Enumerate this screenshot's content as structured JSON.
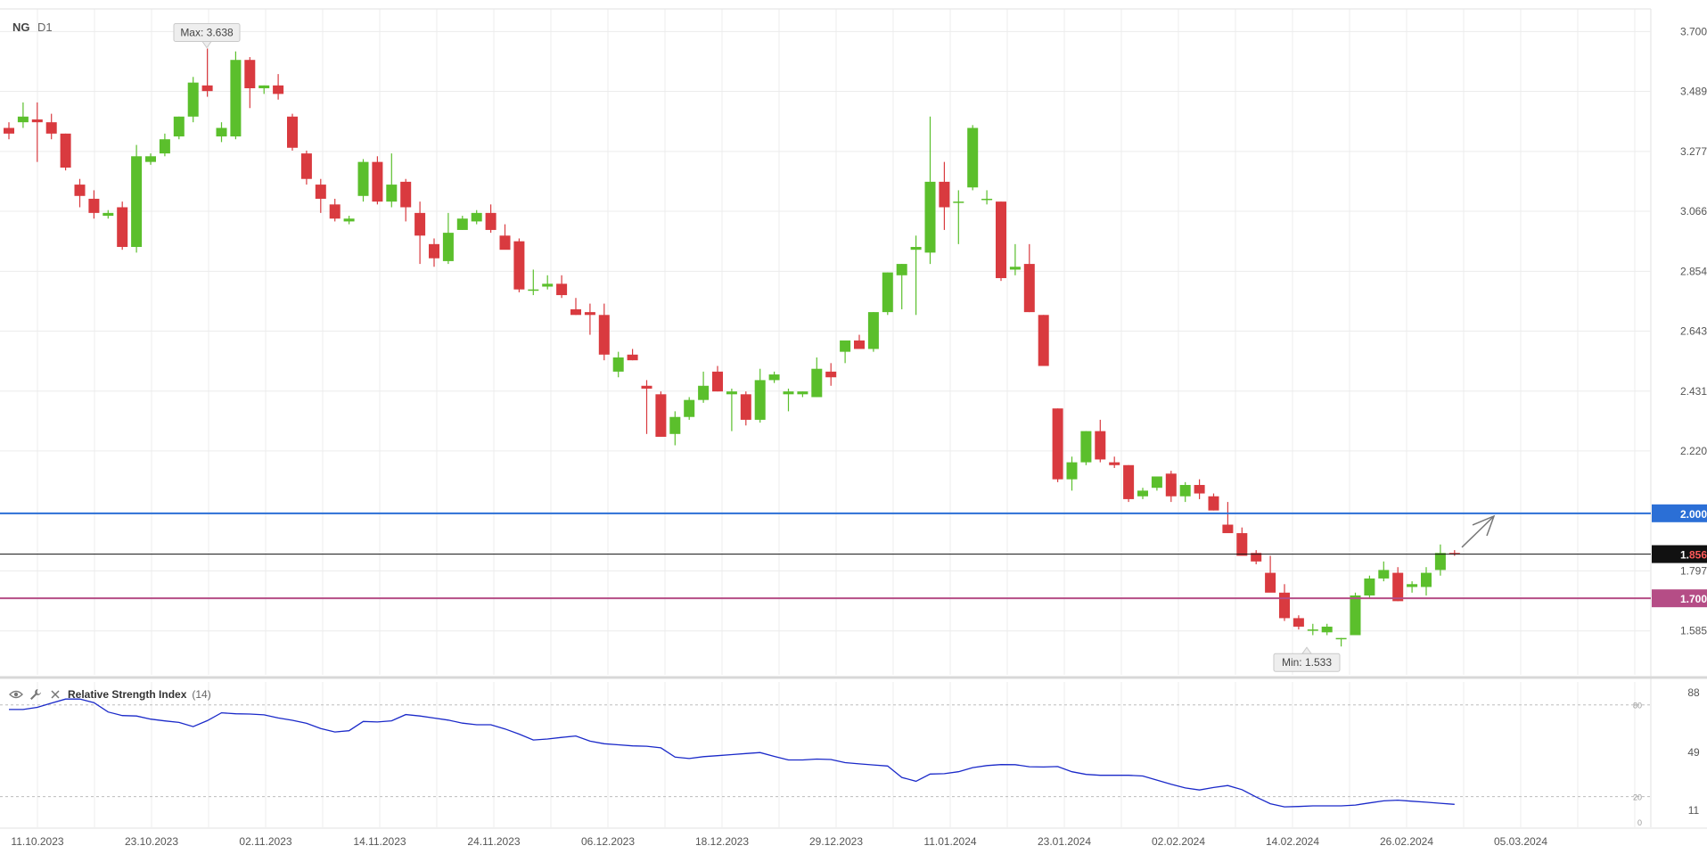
{
  "symbol": "NG",
  "timeframe": "D1",
  "colors": {
    "up": "#5bbf2c",
    "down": "#d93a3f",
    "level_blue": "#2b6fd6",
    "level_pink": "#b54d86",
    "last_price": "#111111",
    "rsi_line": "#1a29c9"
  },
  "chart_data": [
    {
      "type": "candlestick",
      "title": "",
      "ylim": [
        1.43,
        3.78
      ],
      "y_ticks": [
        "3.700",
        "3.489",
        "3.277",
        "3.066",
        "2.854",
        "2.643",
        "2.431",
        "2.220",
        "1.797",
        "1.585"
      ],
      "x_ticks": [
        "11.10.2023",
        "23.10.2023",
        "02.11.2023",
        "14.11.2023",
        "24.11.2023",
        "06.12.2023",
        "18.12.2023",
        "29.12.2023",
        "11.01.2024",
        "23.01.2024",
        "02.02.2024",
        "14.02.2024",
        "26.02.2024",
        "05.03.2024"
      ],
      "annotations": {
        "max_label": "Max: 3.638",
        "min_label": "Min: 1.533"
      },
      "levels": [
        {
          "value": 2.0,
          "label": "2.000",
          "color": "#2b6fd6"
        },
        {
          "value": 1.7,
          "label": "1.700",
          "color": "#b54d86"
        }
      ],
      "last_price": {
        "value": 1.856,
        "label_prefix": "1.",
        "label_suffix": "856"
      },
      "candles": [
        [
          3.36,
          3.38,
          3.32,
          3.34
        ],
        [
          3.38,
          3.45,
          3.36,
          3.4
        ],
        [
          3.39,
          3.45,
          3.24,
          3.38
        ],
        [
          3.38,
          3.41,
          3.32,
          3.34
        ],
        [
          3.34,
          3.34,
          3.21,
          3.22
        ],
        [
          3.16,
          3.18,
          3.08,
          3.12
        ],
        [
          3.11,
          3.14,
          3.04,
          3.06
        ],
        [
          3.05,
          3.07,
          3.04,
          3.06
        ],
        [
          3.08,
          3.1,
          2.93,
          2.94
        ],
        [
          2.94,
          3.3,
          2.92,
          3.26
        ],
        [
          3.24,
          3.27,
          3.23,
          3.26
        ],
        [
          3.27,
          3.34,
          3.26,
          3.32
        ],
        [
          3.33,
          3.4,
          3.32,
          3.4
        ],
        [
          3.4,
          3.54,
          3.38,
          3.52
        ],
        [
          3.51,
          3.64,
          3.47,
          3.49
        ],
        [
          3.33,
          3.38,
          3.31,
          3.36
        ],
        [
          3.33,
          3.63,
          3.32,
          3.6
        ],
        [
          3.6,
          3.61,
          3.43,
          3.5
        ],
        [
          3.5,
          3.51,
          3.48,
          3.51
        ],
        [
          3.51,
          3.55,
          3.46,
          3.48
        ],
        [
          3.4,
          3.41,
          3.28,
          3.29
        ],
        [
          3.27,
          3.28,
          3.16,
          3.18
        ],
        [
          3.16,
          3.18,
          3.06,
          3.11
        ],
        [
          3.09,
          3.11,
          3.03,
          3.04
        ],
        [
          3.03,
          3.05,
          3.02,
          3.04
        ],
        [
          3.12,
          3.25,
          3.1,
          3.24
        ],
        [
          3.24,
          3.26,
          3.09,
          3.1
        ],
        [
          3.1,
          3.27,
          3.08,
          3.16
        ],
        [
          3.17,
          3.18,
          3.03,
          3.08
        ],
        [
          3.06,
          3.1,
          2.88,
          2.98
        ],
        [
          2.95,
          2.97,
          2.87,
          2.9
        ],
        [
          2.89,
          3.06,
          2.88,
          2.99
        ],
        [
          3.0,
          3.05,
          3.0,
          3.04
        ],
        [
          3.03,
          3.07,
          3.02,
          3.06
        ],
        [
          3.06,
          3.09,
          2.99,
          3.0
        ],
        [
          2.98,
          3.02,
          2.94,
          2.93
        ],
        [
          2.96,
          2.97,
          2.78,
          2.79
        ],
        [
          2.79,
          2.86,
          2.77,
          2.79
        ],
        [
          2.8,
          2.84,
          2.79,
          2.81
        ],
        [
          2.81,
          2.84,
          2.76,
          2.77
        ],
        [
          2.72,
          2.76,
          2.7,
          2.7
        ],
        [
          2.71,
          2.74,
          2.63,
          2.7
        ],
        [
          2.7,
          2.74,
          2.54,
          2.56
        ],
        [
          2.5,
          2.57,
          2.48,
          2.55
        ],
        [
          2.56,
          2.58,
          2.54,
          2.54
        ],
        [
          2.45,
          2.47,
          2.28,
          2.44
        ],
        [
          2.42,
          2.43,
          2.27,
          2.27
        ],
        [
          2.28,
          2.36,
          2.24,
          2.34
        ],
        [
          2.34,
          2.41,
          2.33,
          2.4
        ],
        [
          2.4,
          2.5,
          2.39,
          2.45
        ],
        [
          2.5,
          2.52,
          2.43,
          2.43
        ],
        [
          2.42,
          2.44,
          2.29,
          2.43
        ],
        [
          2.42,
          2.43,
          2.31,
          2.33
        ],
        [
          2.33,
          2.51,
          2.32,
          2.47
        ],
        [
          2.47,
          2.5,
          2.46,
          2.49
        ],
        [
          2.42,
          2.44,
          2.36,
          2.43
        ],
        [
          2.42,
          2.43,
          2.41,
          2.43
        ],
        [
          2.41,
          2.55,
          2.41,
          2.51
        ],
        [
          2.5,
          2.53,
          2.45,
          2.48
        ],
        [
          2.57,
          2.6,
          2.53,
          2.61
        ],
        [
          2.61,
          2.63,
          2.6,
          2.58
        ],
        [
          2.58,
          2.71,
          2.57,
          2.71
        ],
        [
          2.71,
          2.85,
          2.7,
          2.85
        ],
        [
          2.84,
          2.88,
          2.72,
          2.88
        ],
        [
          2.93,
          2.98,
          2.7,
          2.94
        ],
        [
          2.92,
          3.4,
          2.88,
          3.17
        ],
        [
          3.17,
          3.24,
          3.0,
          3.08
        ],
        [
          3.1,
          3.14,
          2.95,
          3.1
        ],
        [
          3.15,
          3.37,
          3.14,
          3.36
        ],
        [
          3.11,
          3.14,
          3.09,
          3.11
        ],
        [
          3.1,
          3.1,
          2.82,
          2.83
        ],
        [
          2.86,
          2.95,
          2.84,
          2.87
        ],
        [
          2.88,
          2.95,
          2.71,
          2.71
        ],
        [
          2.7,
          2.7,
          2.52,
          2.52
        ],
        [
          2.37,
          2.37,
          2.11,
          2.12
        ],
        [
          2.12,
          2.2,
          2.08,
          2.18
        ],
        [
          2.18,
          2.29,
          2.17,
          2.29
        ],
        [
          2.29,
          2.33,
          2.18,
          2.19
        ],
        [
          2.18,
          2.2,
          2.16,
          2.17
        ],
        [
          2.17,
          2.17,
          2.04,
          2.05
        ],
        [
          2.06,
          2.09,
          2.05,
          2.08
        ],
        [
          2.09,
          2.13,
          2.08,
          2.13
        ],
        [
          2.14,
          2.15,
          2.04,
          2.06
        ],
        [
          2.06,
          2.11,
          2.04,
          2.1
        ],
        [
          2.1,
          2.12,
          2.05,
          2.07
        ],
        [
          2.06,
          2.07,
          2.01,
          2.01
        ],
        [
          1.96,
          2.04,
          1.95,
          1.93
        ],
        [
          1.93,
          1.95,
          1.85,
          1.85
        ],
        [
          1.86,
          1.87,
          1.82,
          1.83
        ],
        [
          1.79,
          1.85,
          1.73,
          1.72
        ],
        [
          1.72,
          1.75,
          1.62,
          1.63
        ],
        [
          1.63,
          1.64,
          1.59,
          1.6
        ],
        [
          1.59,
          1.61,
          1.57,
          1.59
        ],
        [
          1.58,
          1.61,
          1.57,
          1.6
        ],
        [
          1.56,
          1.56,
          1.53,
          1.56
        ],
        [
          1.57,
          1.72,
          1.57,
          1.71
        ],
        [
          1.71,
          1.78,
          1.7,
          1.77
        ],
        [
          1.77,
          1.83,
          1.76,
          1.8
        ],
        [
          1.79,
          1.81,
          1.69,
          1.69
        ],
        [
          1.74,
          1.76,
          1.72,
          1.75
        ],
        [
          1.74,
          1.81,
          1.71,
          1.79
        ],
        [
          1.8,
          1.89,
          1.78,
          1.86
        ],
        [
          1.86,
          1.87,
          1.85,
          1.856
        ]
      ]
    },
    {
      "type": "line",
      "title": "Relative Strength Index",
      "param": "(14)",
      "ylim": [
        0,
        95
      ],
      "y_ticks": [
        "88",
        "49",
        "11"
      ],
      "levels_labels": [
        "80",
        "20",
        "0"
      ],
      "series": [
        {
          "values": [
            77,
            77,
            81,
            85,
            82,
            73,
            73,
            70,
            69,
            65,
            75,
            74,
            74,
            71,
            69,
            64,
            61,
            70,
            68,
            74,
            72,
            70,
            67,
            67,
            63,
            57,
            58,
            60,
            55,
            54,
            53,
            53,
            44,
            46,
            47,
            48,
            49,
            44,
            44,
            45,
            42,
            41,
            40,
            28,
            35,
            35,
            39,
            41,
            41,
            39,
            40,
            35,
            34,
            34,
            34,
            30,
            26,
            24,
            28,
            24,
            16,
            13,
            14,
            14,
            14,
            16,
            18,
            17,
            16,
            15
          ]
        }
      ]
    }
  ]
}
